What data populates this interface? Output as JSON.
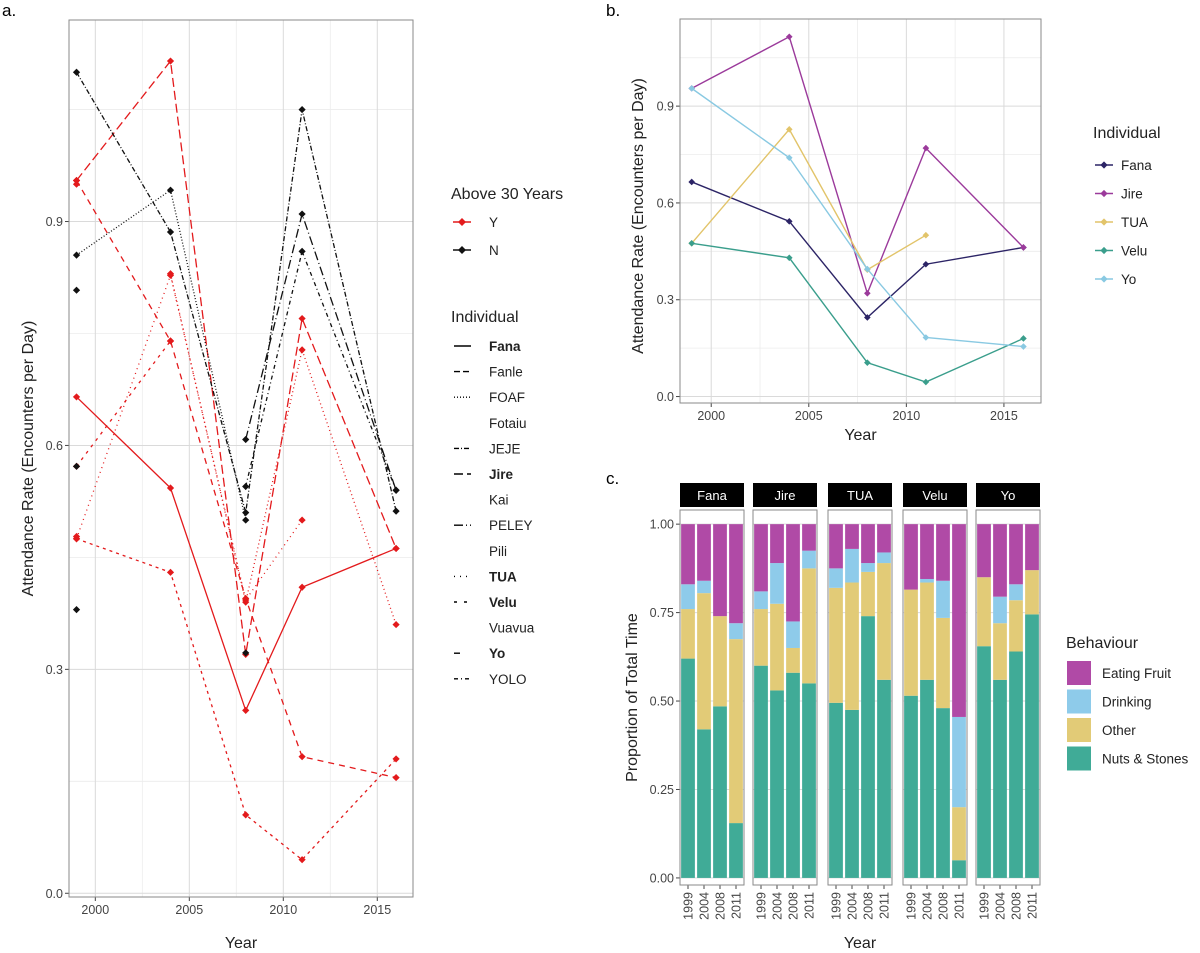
{
  "figure": {
    "panel_a_label": "a.",
    "panel_b_label": "b.",
    "panel_c_label": "c."
  },
  "colors": {
    "red": "#e31a1c",
    "black": "#111111",
    "Fana": "#2c2466",
    "Jire": "#9b3a9b",
    "TUA": "#e2c46a",
    "Velu": "#3a9e8c",
    "Yo": "#89c9e2",
    "eating_fruit": "#b04aa6",
    "drinking": "#8ecbea",
    "other": "#e2cb77",
    "nuts_stones": "#40ab97",
    "grid": "#dadada",
    "border": "#8a8a8a",
    "strip": "#000000"
  },
  "chart_data": [
    {
      "type": "line",
      "panel": "a.",
      "xlabel": "Year",
      "ylabel": "Attendance Rate (Encounters per Day)",
      "xlim": [
        1998.6,
        2016.9
      ],
      "ylim": [
        -0.005,
        1.17
      ],
      "x_ticks": [
        2000,
        2005,
        2010,
        2015
      ],
      "x_tick_labels": [
        "2000",
        "2005",
        "2010",
        "2015"
      ],
      "y_ticks": [
        0.0,
        0.3,
        0.6,
        0.9
      ],
      "y_tick_labels": [
        "0.0",
        "0.3",
        "0.6",
        "0.9"
      ],
      "legend_above30": {
        "title": "Above 30 Years",
        "items": [
          {
            "label": "Y",
            "color": "red"
          },
          {
            "label": "N",
            "color": "black"
          }
        ]
      },
      "legend_individual": {
        "title": "Individual",
        "items": [
          {
            "label": "Fana",
            "dash": "",
            "bold": true
          },
          {
            "label": "Fanle",
            "dash": "6,3",
            "bold": false
          },
          {
            "label": "FOAF",
            "dash": "1,2",
            "bold": false
          },
          {
            "label": "Fotaiu",
            "dash": "none",
            "bold": false
          },
          {
            "label": "JEJE",
            "dash": "5,2,1,2",
            "bold": false
          },
          {
            "label": "Jire",
            "dash": "9,4",
            "bold": true
          },
          {
            "label": "Kai",
            "dash": "none",
            "bold": false
          },
          {
            "label": "PELEY",
            "dash": "9,3,1,3",
            "bold": false
          },
          {
            "label": "Pili",
            "dash": "none",
            "bold": false
          },
          {
            "label": "TUA",
            "dash": "1,5",
            "bold": true
          },
          {
            "label": "Velu",
            "dash": "3,7",
            "bold": true
          },
          {
            "label": "Vuavua",
            "dash": "none",
            "bold": false
          },
          {
            "label": "Yo",
            "dash": "6,20",
            "bold": true
          },
          {
            "label": "YOLO",
            "dash": "4,3,1,3",
            "bold": false
          }
        ]
      },
      "series": [
        {
          "name": "Fana",
          "group": "Y",
          "dash": "",
          "x": [
            1999,
            2004,
            2008,
            2011,
            2016
          ],
          "y": [
            0.665,
            0.543,
            0.245,
            0.41,
            0.462
          ]
        },
        {
          "name": "Jire",
          "group": "Y",
          "dash": "9,4",
          "x": [
            1999,
            2004,
            2008,
            2011,
            2016
          ],
          "y": [
            0.955,
            1.115,
            0.32,
            0.77,
            0.462
          ]
        },
        {
          "name": "TUA",
          "group": "Y",
          "dash": "1,4",
          "x": [
            1999,
            2004,
            2008,
            2011
          ],
          "y": [
            0.475,
            0.828,
            0.393,
            0.5
          ]
        },
        {
          "name": "Velu",
          "group": "Y",
          "dash": "3,4",
          "x": [
            1999,
            2004,
            2008,
            2011,
            2016
          ],
          "y": [
            0.475,
            0.43,
            0.105,
            0.045,
            0.18
          ]
        },
        {
          "name": "Yo",
          "group": "Y",
          "dash": "6,5",
          "x": [
            1999,
            2004,
            2008,
            2011,
            2016
          ],
          "y": [
            0.955,
            0.74,
            0.395,
            0.183,
            0.155
          ]
        },
        {
          "name": "FOAF",
          "group": "Y",
          "dash": "1,3",
          "x": [
            2004,
            2008,
            2011,
            2016
          ],
          "y": [
            0.83,
            0.39,
            0.728,
            0.36
          ]
        },
        {
          "name": "Fanle",
          "group": "Y",
          "dash": "3,5",
          "x": [
            1999,
            2004
          ],
          "y": [
            0.572,
            0.74
          ]
        },
        {
          "name": "JEJE",
          "group": "N",
          "dash": "5,2,1,2",
          "x": [
            1999,
            2004,
            2008,
            2011,
            2016
          ],
          "y": [
            1.1,
            0.886,
            0.51,
            1.05,
            0.512
          ]
        },
        {
          "name": "FOAF",
          "group": "N",
          "dash": "1,2",
          "x": [
            1999,
            2004,
            2008
          ],
          "y": [
            0.855,
            0.942,
            0.5
          ]
        },
        {
          "name": "PELEY",
          "group": "N",
          "dash": "9,3,1,3",
          "x": [
            2008,
            2011,
            2016
          ],
          "y": [
            0.608,
            0.91,
            0.54
          ]
        },
        {
          "name": "YOLO",
          "group": "N",
          "dash": "4,3,1,3",
          "x": [
            2008,
            2011,
            2016
          ],
          "y": [
            0.545,
            0.86,
            0.54
          ]
        },
        {
          "name": "Pili",
          "group": "N",
          "dash": "none",
          "x": [
            1999,
            1999,
            1999,
            2008
          ],
          "y": [
            0.808,
            0.572,
            0.38,
            0.322
          ]
        },
        {
          "name": "Kai",
          "group": "Y",
          "dash": "none",
          "x": [
            1999,
            1999
          ],
          "y": [
            0.95,
            0.478
          ]
        }
      ]
    },
    {
      "type": "line",
      "panel": "b.",
      "xlabel": "Year",
      "ylabel": "Attendance Rate (Encounters per Day)",
      "xlim": [
        1998.4,
        2016.9
      ],
      "ylim": [
        -0.02,
        1.17
      ],
      "x_ticks": [
        2000,
        2005,
        2010,
        2015
      ],
      "x_tick_labels": [
        "2000",
        "2005",
        "2010",
        "2015"
      ],
      "y_ticks": [
        0.0,
        0.3,
        0.6,
        0.9
      ],
      "y_tick_labels": [
        "0.0",
        "0.3",
        "0.6",
        "0.9"
      ],
      "legend": {
        "title": "Individual",
        "items": [
          "Fana",
          "Jire",
          "TUA",
          "Velu",
          "Yo"
        ]
      },
      "series": [
        {
          "name": "Fana",
          "x": [
            1999,
            2004,
            2008,
            2011,
            2016
          ],
          "y": [
            0.665,
            0.543,
            0.245,
            0.41,
            0.462
          ]
        },
        {
          "name": "Jire",
          "x": [
            1999,
            2004,
            2008,
            2011,
            2016
          ],
          "y": [
            0.955,
            1.115,
            0.32,
            0.77,
            0.462
          ]
        },
        {
          "name": "TUA",
          "x": [
            1999,
            2004,
            2008,
            2011
          ],
          "y": [
            0.475,
            0.828,
            0.393,
            0.5
          ]
        },
        {
          "name": "Velu",
          "x": [
            1999,
            2004,
            2008,
            2011,
            2016
          ],
          "y": [
            0.475,
            0.43,
            0.105,
            0.045,
            0.18
          ]
        },
        {
          "name": "Yo",
          "x": [
            1999,
            2004,
            2008,
            2011,
            2016
          ],
          "y": [
            0.955,
            0.74,
            0.395,
            0.183,
            0.155
          ]
        }
      ]
    },
    {
      "type": "bar",
      "stacked": true,
      "panel": "c.",
      "xlabel": "Year",
      "ylabel": "Proportion of Total Time",
      "ylim": [
        -0.02,
        1.04
      ],
      "y_ticks": [
        0.0,
        0.25,
        0.5,
        0.75,
        1.0
      ],
      "y_tick_labels": [
        "0.00",
        "0.25",
        "0.50",
        "0.75",
        "1.00"
      ],
      "categories": [
        "1999",
        "2004",
        "2008",
        "2011"
      ],
      "legend": {
        "title": "Behaviour",
        "items": [
          {
            "label": "Eating Fruit",
            "key": "eating_fruit"
          },
          {
            "label": "Drinking",
            "key": "drinking"
          },
          {
            "label": "Other",
            "key": "other"
          },
          {
            "label": "Nuts & Stones",
            "key": "nuts_stones"
          }
        ]
      },
      "stack_order": [
        "nuts_stones",
        "other",
        "drinking",
        "eating_fruit"
      ],
      "facets": [
        {
          "name": "Fana",
          "values": [
            {
              "nuts_stones": 0.62,
              "other": 0.14,
              "drinking": 0.07,
              "eating_fruit": 0.17
            },
            {
              "nuts_stones": 0.42,
              "other": 0.385,
              "drinking": 0.035,
              "eating_fruit": 0.16
            },
            {
              "nuts_stones": 0.485,
              "other": 0.255,
              "drinking": 0.0,
              "eating_fruit": 0.26
            },
            {
              "nuts_stones": 0.155,
              "other": 0.52,
              "drinking": 0.045,
              "eating_fruit": 0.28
            }
          ]
        },
        {
          "name": "Jire",
          "values": [
            {
              "nuts_stones": 0.6,
              "other": 0.16,
              "drinking": 0.05,
              "eating_fruit": 0.19
            },
            {
              "nuts_stones": 0.53,
              "other": 0.245,
              "drinking": 0.115,
              "eating_fruit": 0.11
            },
            {
              "nuts_stones": 0.58,
              "other": 0.07,
              "drinking": 0.075,
              "eating_fruit": 0.275
            },
            {
              "nuts_stones": 0.55,
              "other": 0.325,
              "drinking": 0.05,
              "eating_fruit": 0.075
            }
          ]
        },
        {
          "name": "TUA",
          "values": [
            {
              "nuts_stones": 0.495,
              "other": 0.325,
              "drinking": 0.055,
              "eating_fruit": 0.125
            },
            {
              "nuts_stones": 0.475,
              "other": 0.36,
              "drinking": 0.095,
              "eating_fruit": 0.07
            },
            {
              "nuts_stones": 0.74,
              "other": 0.125,
              "drinking": 0.025,
              "eating_fruit": 0.11
            },
            {
              "nuts_stones": 0.56,
              "other": 0.33,
              "drinking": 0.03,
              "eating_fruit": 0.08
            }
          ]
        },
        {
          "name": "Velu",
          "values": [
            {
              "nuts_stones": 0.515,
              "other": 0.3,
              "drinking": 0.0,
              "eating_fruit": 0.185
            },
            {
              "nuts_stones": 0.56,
              "other": 0.275,
              "drinking": 0.01,
              "eating_fruit": 0.155
            },
            {
              "nuts_stones": 0.48,
              "other": 0.255,
              "drinking": 0.105,
              "eating_fruit": 0.16
            },
            {
              "nuts_stones": 0.05,
              "other": 0.15,
              "drinking": 0.255,
              "eating_fruit": 0.545
            }
          ]
        },
        {
          "name": "Yo",
          "values": [
            {
              "nuts_stones": 0.655,
              "other": 0.195,
              "drinking": 0.0,
              "eating_fruit": 0.15
            },
            {
              "nuts_stones": 0.56,
              "other": 0.16,
              "drinking": 0.075,
              "eating_fruit": 0.205
            },
            {
              "nuts_stones": 0.64,
              "other": 0.145,
              "drinking": 0.045,
              "eating_fruit": 0.17
            },
            {
              "nuts_stones": 0.745,
              "other": 0.125,
              "drinking": 0.0,
              "eating_fruit": 0.13
            }
          ]
        }
      ]
    }
  ]
}
